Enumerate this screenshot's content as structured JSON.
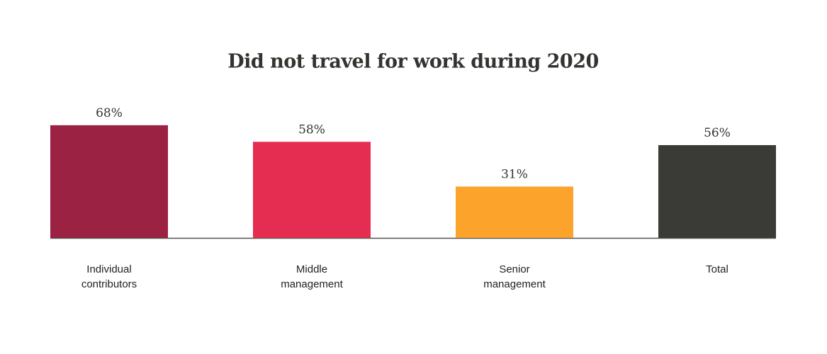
{
  "chart_data": {
    "type": "bar",
    "title": "Did not travel for work during 2020",
    "categories": [
      "Individual contributors",
      "Middle management",
      "Senior management",
      "Total"
    ],
    "values": [
      68,
      58,
      31,
      56
    ],
    "value_labels": [
      "68%",
      "58%",
      "31%",
      "56%"
    ],
    "colors": [
      "#9b2242",
      "#e52d51",
      "#fca32c",
      "#3a3a36"
    ]
  }
}
